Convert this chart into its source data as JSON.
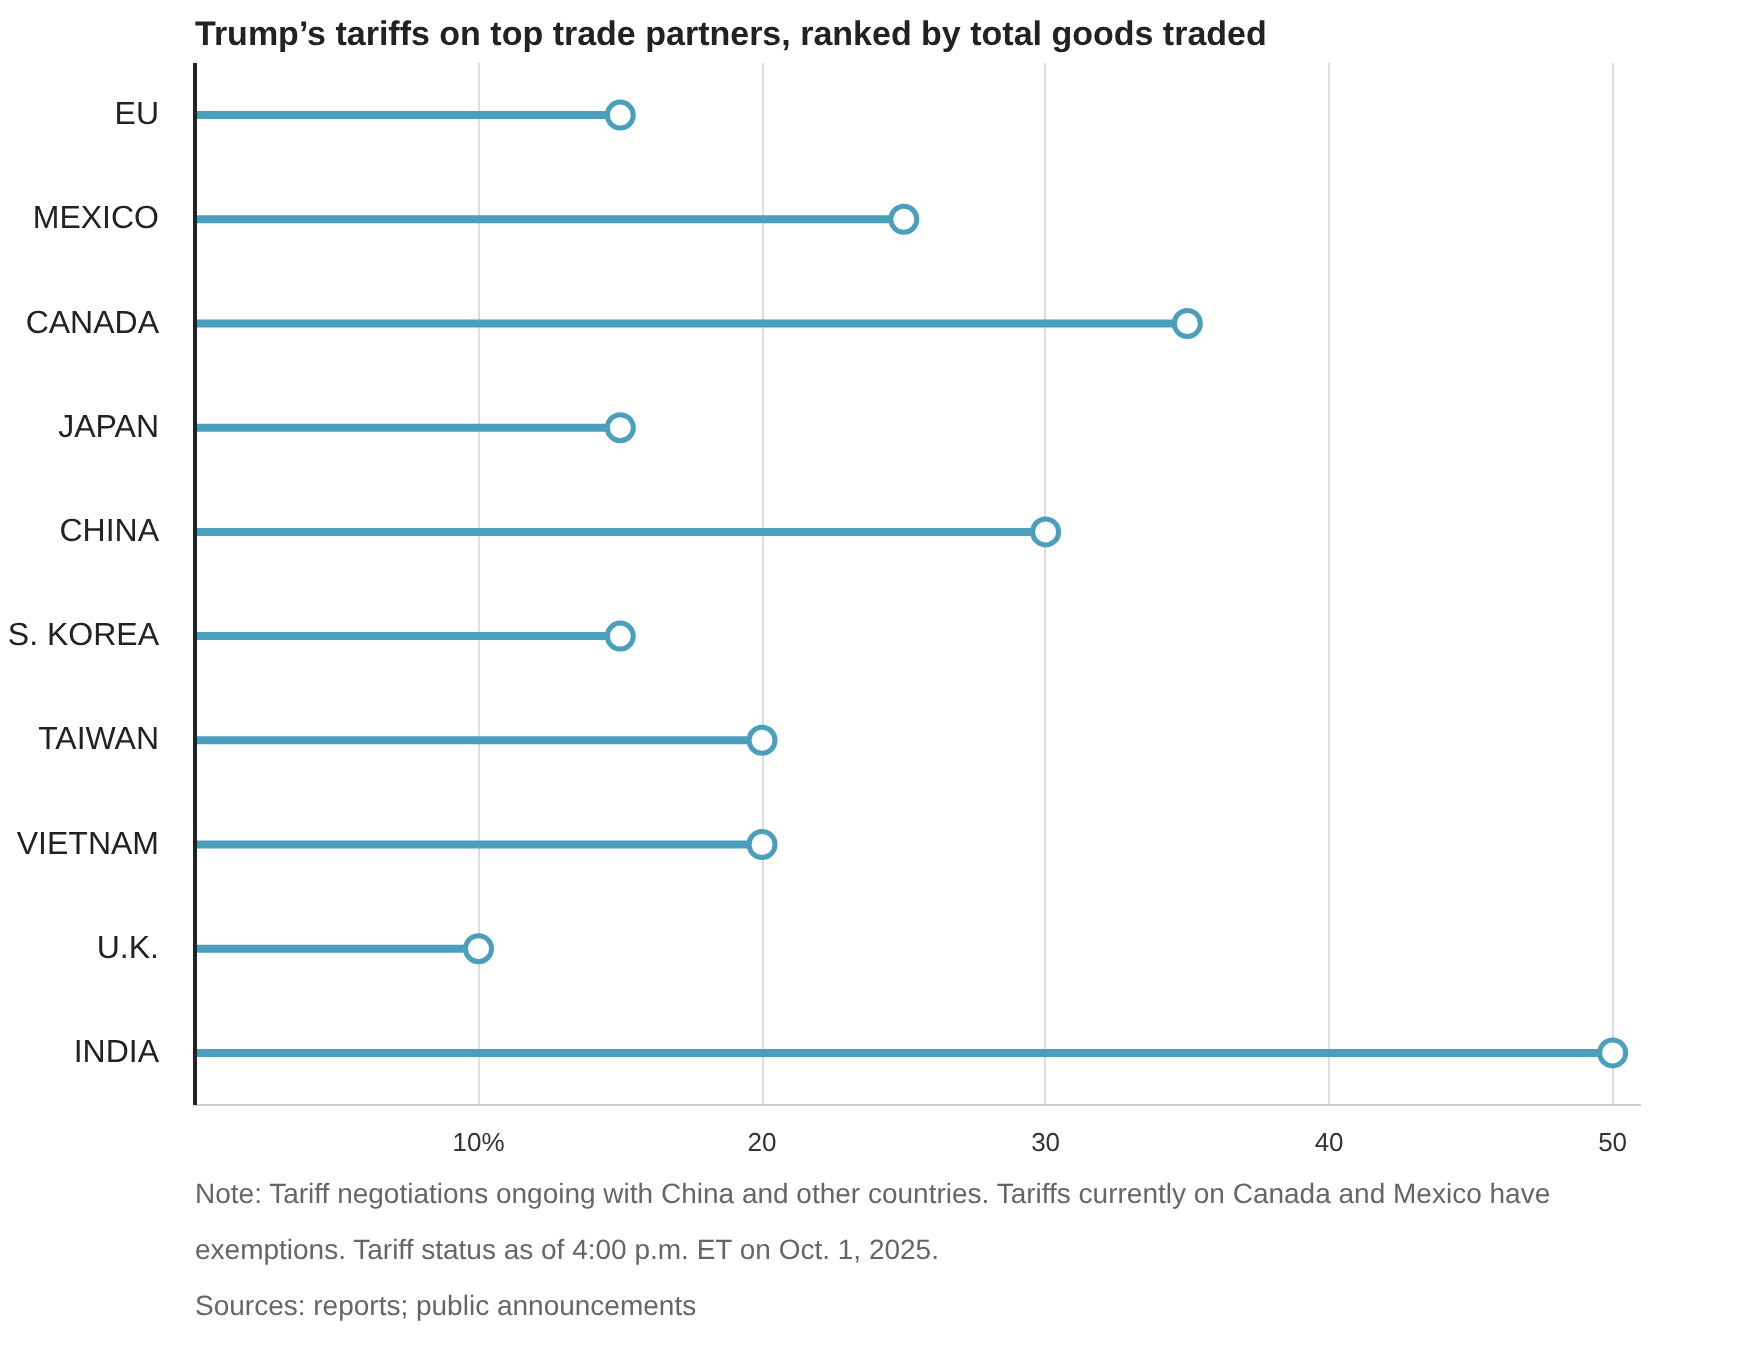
{
  "chart_data": {
    "type": "lollipop",
    "orientation": "horizontal",
    "title": "Trump’s tariffs on top trade partners, ranked by total goods traded",
    "categories": [
      "EU",
      "MEXICO",
      "CANADA",
      "JAPAN",
      "CHINA",
      "S. KOREA",
      "TAIWAN",
      "VIETNAM",
      "U.K.",
      "INDIA"
    ],
    "values": [
      15,
      25,
      35,
      15,
      30,
      15,
      20,
      20,
      10,
      50
    ],
    "color": "#4a9fbd",
    "xlim": [
      0,
      51
    ],
    "xticks": [
      {
        "value": 10,
        "label": "10%"
      },
      20,
      30,
      40,
      50
    ],
    "grid": "x",
    "marker": "circle",
    "annotations": [
      "Note: Tariff negotiations ongoing with China and other countries. Tariffs currently on Canada and Mexico have exemptions. Tariff status as of 4:00 p.m. ET on Oct. 1, 2025.",
      "Sources: reports; public announcements"
    ]
  }
}
